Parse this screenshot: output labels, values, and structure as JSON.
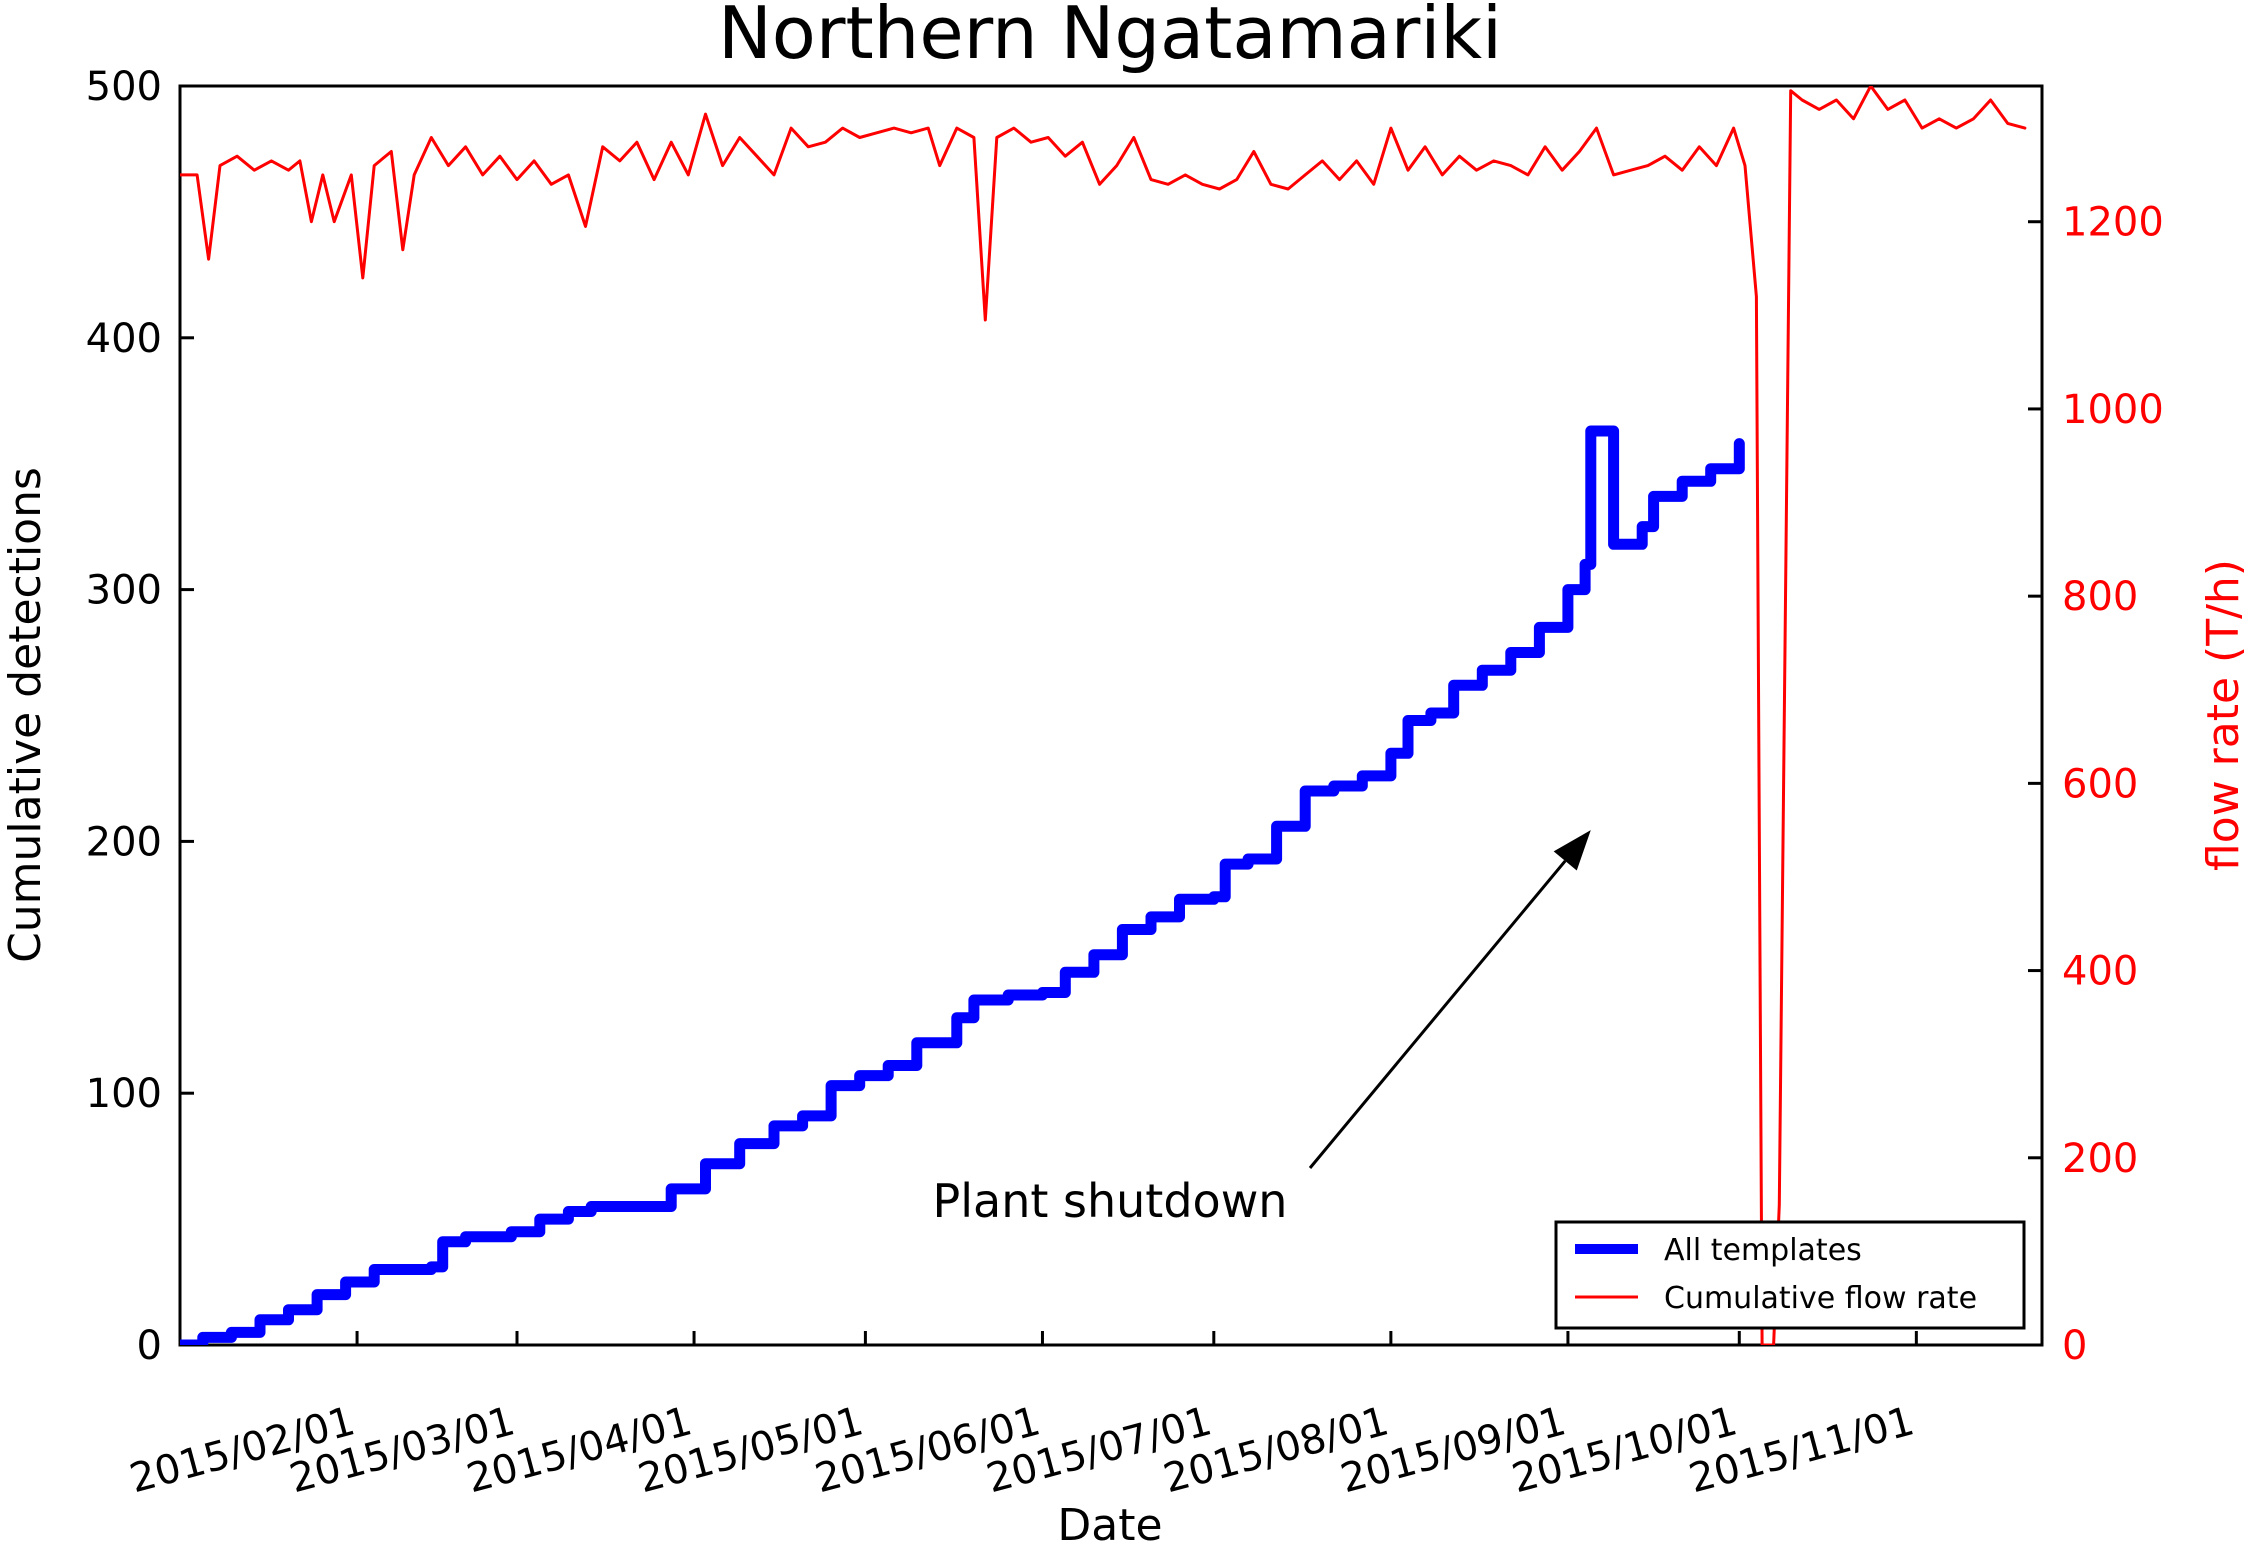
{
  "chart_data": {
    "type": "line",
    "title": "Northern Ngatamariki",
    "xlabel": "Date",
    "ylabel": "Cumulative detections",
    "y2label": "flow rate (T/h)",
    "x_range": [
      "2015-01-01",
      "2015-11-23"
    ],
    "ylim": [
      0,
      500
    ],
    "y2lim": [
      0,
      1345
    ],
    "x_ticks": [
      {
        "date": "2015-02-01",
        "label": "2015/02/01"
      },
      {
        "date": "2015-03-01",
        "label": "2015/03/01"
      },
      {
        "date": "2015-04-01",
        "label": "2015/04/01"
      },
      {
        "date": "2015-05-01",
        "label": "2015/05/01"
      },
      {
        "date": "2015-06-01",
        "label": "2015/06/01"
      },
      {
        "date": "2015-07-01",
        "label": "2015/07/01"
      },
      {
        "date": "2015-08-01",
        "label": "2015/08/01"
      },
      {
        "date": "2015-09-01",
        "label": "2015/09/01"
      },
      {
        "date": "2015-10-01",
        "label": "2015/10/01"
      },
      {
        "date": "2015-11-01",
        "label": "2015/11/01"
      }
    ],
    "y_ticks": [
      0,
      100,
      200,
      300,
      400,
      500
    ],
    "y2_ticks": [
      0,
      200,
      400,
      600,
      800,
      1000,
      1200
    ],
    "grid": false,
    "legend_position": "bottom-right",
    "series": [
      {
        "name": "All templates",
        "axis": "left",
        "color": "#0000ff",
        "step": true,
        "points": [
          [
            "2015-01-01",
            0
          ],
          [
            "2015-01-05",
            3
          ],
          [
            "2015-01-10",
            5
          ],
          [
            "2015-01-15",
            10
          ],
          [
            "2015-01-20",
            14
          ],
          [
            "2015-01-25",
            20
          ],
          [
            "2015-01-30",
            25
          ],
          [
            "2015-02-04",
            30
          ],
          [
            "2015-02-14",
            31
          ],
          [
            "2015-02-16",
            41
          ],
          [
            "2015-02-20",
            43
          ],
          [
            "2015-02-28",
            45
          ],
          [
            "2015-03-05",
            50
          ],
          [
            "2015-03-10",
            53
          ],
          [
            "2015-03-14",
            55
          ],
          [
            "2015-03-22",
            55
          ],
          [
            "2015-03-28",
            62
          ],
          [
            "2015-04-03",
            72
          ],
          [
            "2015-04-09",
            80
          ],
          [
            "2015-04-15",
            87
          ],
          [
            "2015-04-20",
            91
          ],
          [
            "2015-04-25",
            103
          ],
          [
            "2015-04-30",
            107
          ],
          [
            "2015-05-05",
            111
          ],
          [
            "2015-05-10",
            120
          ],
          [
            "2015-05-17",
            130
          ],
          [
            "2015-05-20",
            137
          ],
          [
            "2015-05-26",
            139
          ],
          [
            "2015-06-01",
            140
          ],
          [
            "2015-06-05",
            148
          ],
          [
            "2015-06-10",
            155
          ],
          [
            "2015-06-15",
            165
          ],
          [
            "2015-06-20",
            170
          ],
          [
            "2015-06-25",
            177
          ],
          [
            "2015-07-01",
            178
          ],
          [
            "2015-07-03",
            191
          ],
          [
            "2015-07-07",
            193
          ],
          [
            "2015-07-12",
            206
          ],
          [
            "2015-07-17",
            220
          ],
          [
            "2015-07-22",
            222
          ],
          [
            "2015-07-27",
            226
          ],
          [
            "2015-08-01",
            235
          ],
          [
            "2015-08-04",
            248
          ],
          [
            "2015-08-08",
            251
          ],
          [
            "2015-08-12",
            262
          ],
          [
            "2015-08-17",
            268
          ],
          [
            "2015-08-22",
            275
          ],
          [
            "2015-08-27",
            285
          ],
          [
            "2015-09-01",
            300
          ],
          [
            "2015-09-04",
            310
          ],
          [
            "2015-09-09",
            318
          ],
          [
            "2015-09-14",
            325
          ],
          [
            "2015-09-16",
            337
          ],
          [
            "2015-09-21",
            343
          ],
          [
            "2015-09-26",
            348
          ],
          [
            "2015-10-01",
            358
          ],
          [
            "2015-09-05",
            363
          ]
        ]
      },
      {
        "name": "Cumulative flow rate",
        "axis": "right",
        "color": "#ff0000",
        "points": [
          [
            "2015-01-01",
            1250
          ],
          [
            "2015-01-04",
            1250
          ],
          [
            "2015-01-06",
            1160
          ],
          [
            "2015-01-08",
            1260
          ],
          [
            "2015-01-11",
            1270
          ],
          [
            "2015-01-14",
            1255
          ],
          [
            "2015-01-17",
            1265
          ],
          [
            "2015-01-20",
            1255
          ],
          [
            "2015-01-22",
            1265
          ],
          [
            "2015-01-24",
            1200
          ],
          [
            "2015-01-26",
            1250
          ],
          [
            "2015-01-28",
            1200
          ],
          [
            "2015-01-31",
            1250
          ],
          [
            "2015-02-02",
            1140
          ],
          [
            "2015-02-04",
            1260
          ],
          [
            "2015-02-07",
            1275
          ],
          [
            "2015-02-09",
            1170
          ],
          [
            "2015-02-11",
            1250
          ],
          [
            "2015-02-14",
            1290
          ],
          [
            "2015-02-17",
            1260
          ],
          [
            "2015-02-20",
            1280
          ],
          [
            "2015-02-23",
            1250
          ],
          [
            "2015-02-26",
            1270
          ],
          [
            "2015-03-01",
            1245
          ],
          [
            "2015-03-04",
            1265
          ],
          [
            "2015-03-07",
            1240
          ],
          [
            "2015-03-10",
            1250
          ],
          [
            "2015-03-13",
            1195
          ],
          [
            "2015-03-16",
            1280
          ],
          [
            "2015-03-19",
            1265
          ],
          [
            "2015-03-22",
            1285
          ],
          [
            "2015-03-25",
            1245
          ],
          [
            "2015-03-28",
            1285
          ],
          [
            "2015-03-31",
            1250
          ],
          [
            "2015-04-03",
            1315
          ],
          [
            "2015-04-06",
            1260
          ],
          [
            "2015-04-09",
            1290
          ],
          [
            "2015-04-12",
            1270
          ],
          [
            "2015-04-15",
            1250
          ],
          [
            "2015-04-18",
            1300
          ],
          [
            "2015-04-21",
            1280
          ],
          [
            "2015-04-24",
            1285
          ],
          [
            "2015-04-27",
            1300
          ],
          [
            "2015-04-30",
            1290
          ],
          [
            "2015-05-03",
            1295
          ],
          [
            "2015-05-06",
            1300
          ],
          [
            "2015-05-09",
            1295
          ],
          [
            "2015-05-12",
            1300
          ],
          [
            "2015-05-14",
            1260
          ],
          [
            "2015-05-17",
            1300
          ],
          [
            "2015-05-20",
            1290
          ],
          [
            "2015-05-22",
            1095
          ],
          [
            "2015-05-24",
            1290
          ],
          [
            "2015-05-27",
            1300
          ],
          [
            "2015-05-30",
            1285
          ],
          [
            "2015-06-02",
            1290
          ],
          [
            "2015-06-05",
            1270
          ],
          [
            "2015-06-08",
            1285
          ],
          [
            "2015-06-11",
            1240
          ],
          [
            "2015-06-14",
            1260
          ],
          [
            "2015-06-17",
            1290
          ],
          [
            "2015-06-20",
            1245
          ],
          [
            "2015-06-23",
            1240
          ],
          [
            "2015-06-26",
            1250
          ],
          [
            "2015-06-29",
            1240
          ],
          [
            "2015-07-02",
            1235
          ],
          [
            "2015-07-05",
            1245
          ],
          [
            "2015-07-08",
            1275
          ],
          [
            "2015-07-11",
            1240
          ],
          [
            "2015-07-14",
            1235
          ],
          [
            "2015-07-17",
            1250
          ],
          [
            "2015-07-20",
            1265
          ],
          [
            "2015-07-23",
            1245
          ],
          [
            "2015-07-26",
            1265
          ],
          [
            "2015-07-29",
            1240
          ],
          [
            "2015-08-01",
            1300
          ],
          [
            "2015-08-04",
            1255
          ],
          [
            "2015-08-07",
            1280
          ],
          [
            "2015-08-10",
            1250
          ],
          [
            "2015-08-13",
            1270
          ],
          [
            "2015-08-16",
            1255
          ],
          [
            "2015-08-19",
            1265
          ],
          [
            "2015-08-22",
            1260
          ],
          [
            "2015-08-25",
            1250
          ],
          [
            "2015-08-28",
            1280
          ],
          [
            "2015-08-31",
            1255
          ],
          [
            "2015-09-03",
            1275
          ],
          [
            "2015-09-06",
            1300
          ],
          [
            "2015-09-09",
            1250
          ],
          [
            "2015-09-12",
            1255
          ],
          [
            "2015-09-15",
            1260
          ],
          [
            "2015-09-18",
            1270
          ],
          [
            "2015-09-21",
            1255
          ],
          [
            "2015-09-24",
            1280
          ],
          [
            "2015-09-27",
            1260
          ],
          [
            "2015-09-30",
            1300
          ],
          [
            "2015-10-02",
            1260
          ],
          [
            "2015-10-04",
            1120
          ],
          [
            "2015-10-05",
            0
          ],
          [
            "2015-10-07",
            0
          ],
          [
            "2015-10-08",
            150
          ],
          [
            "2015-10-10",
            1340
          ],
          [
            "2015-10-12",
            1330
          ],
          [
            "2015-10-15",
            1320
          ],
          [
            "2015-10-18",
            1330
          ],
          [
            "2015-10-21",
            1310
          ],
          [
            "2015-10-24",
            1345
          ],
          [
            "2015-10-27",
            1320
          ],
          [
            "2015-10-30",
            1330
          ],
          [
            "2015-11-02",
            1300
          ],
          [
            "2015-11-05",
            1310
          ],
          [
            "2015-11-08",
            1300
          ],
          [
            "2015-11-11",
            1310
          ],
          [
            "2015-11-14",
            1330
          ],
          [
            "2015-11-17",
            1305
          ],
          [
            "2015-11-20",
            1300
          ]
        ]
      }
    ],
    "annotation": {
      "text": "Plant shutdown",
      "arrow_to_date": "2015-09-05",
      "arrow_to_y2": 550
    }
  }
}
